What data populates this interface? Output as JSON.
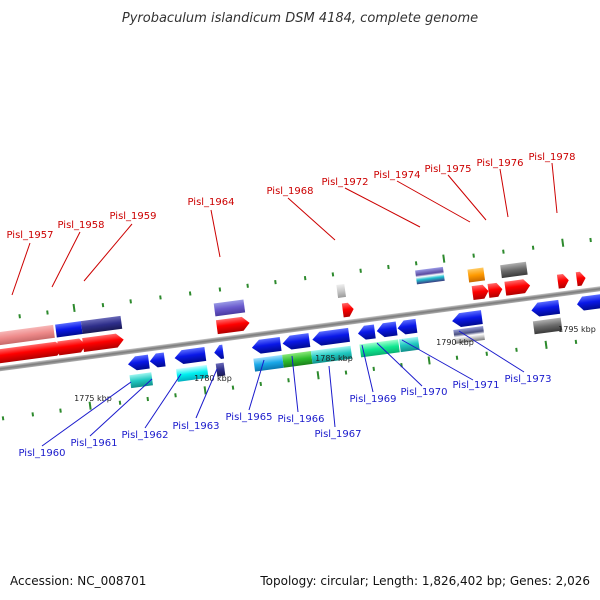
{
  "header": {
    "title": "Pyrobaculum islandicum DSM 4184, complete genome"
  },
  "footer": {
    "accession": "Accession: NC_008701",
    "summary": "Topology: circular; Length: 1,826,402 bp; Genes: 2,026"
  },
  "ticks": [
    "1775 kbp",
    "1780 kbp",
    "1785 kbp",
    "1790 kbp",
    "1795 kbp"
  ],
  "genes_top": [
    {
      "id": "g1957",
      "label": "Pisl_1957"
    },
    {
      "id": "g1958",
      "label": "Pisl_1958"
    },
    {
      "id": "g1959",
      "label": "Pisl_1959"
    },
    {
      "id": "g1964",
      "label": "Pisl_1964"
    },
    {
      "id": "g1968",
      "label": "Pisl_1968"
    },
    {
      "id": "g1972",
      "label": "Pisl_1972"
    },
    {
      "id": "g1974",
      "label": "Pisl_1974"
    },
    {
      "id": "g1975",
      "label": "Pisl_1975"
    },
    {
      "id": "g1976",
      "label": "Pisl_1976"
    },
    {
      "id": "g1978",
      "label": "Pisl_1978"
    }
  ],
  "genes_bottom": [
    {
      "id": "g1960",
      "label": "Pisl_1960"
    },
    {
      "id": "g1961",
      "label": "Pisl_1961"
    },
    {
      "id": "g1962",
      "label": "Pisl_1962"
    },
    {
      "id": "g1963",
      "label": "Pisl_1963"
    },
    {
      "id": "g1965",
      "label": "Pisl_1965"
    },
    {
      "id": "g1966",
      "label": "Pisl_1966"
    },
    {
      "id": "g1967",
      "label": "Pisl_1967"
    },
    {
      "id": "g1969",
      "label": "Pisl_1969"
    },
    {
      "id": "g1970",
      "label": "Pisl_1970"
    },
    {
      "id": "g1971",
      "label": "Pisl_1971"
    },
    {
      "id": "g1973",
      "label": "Pisl_1973"
    }
  ],
  "colors": {
    "forward_cds": "#ff0000",
    "reverse_cds": "#0000ee",
    "label_top": "#cc0000",
    "label_bottom": "#1a1acc",
    "backbone": "#888888",
    "tick": "#2d8a2d"
  }
}
